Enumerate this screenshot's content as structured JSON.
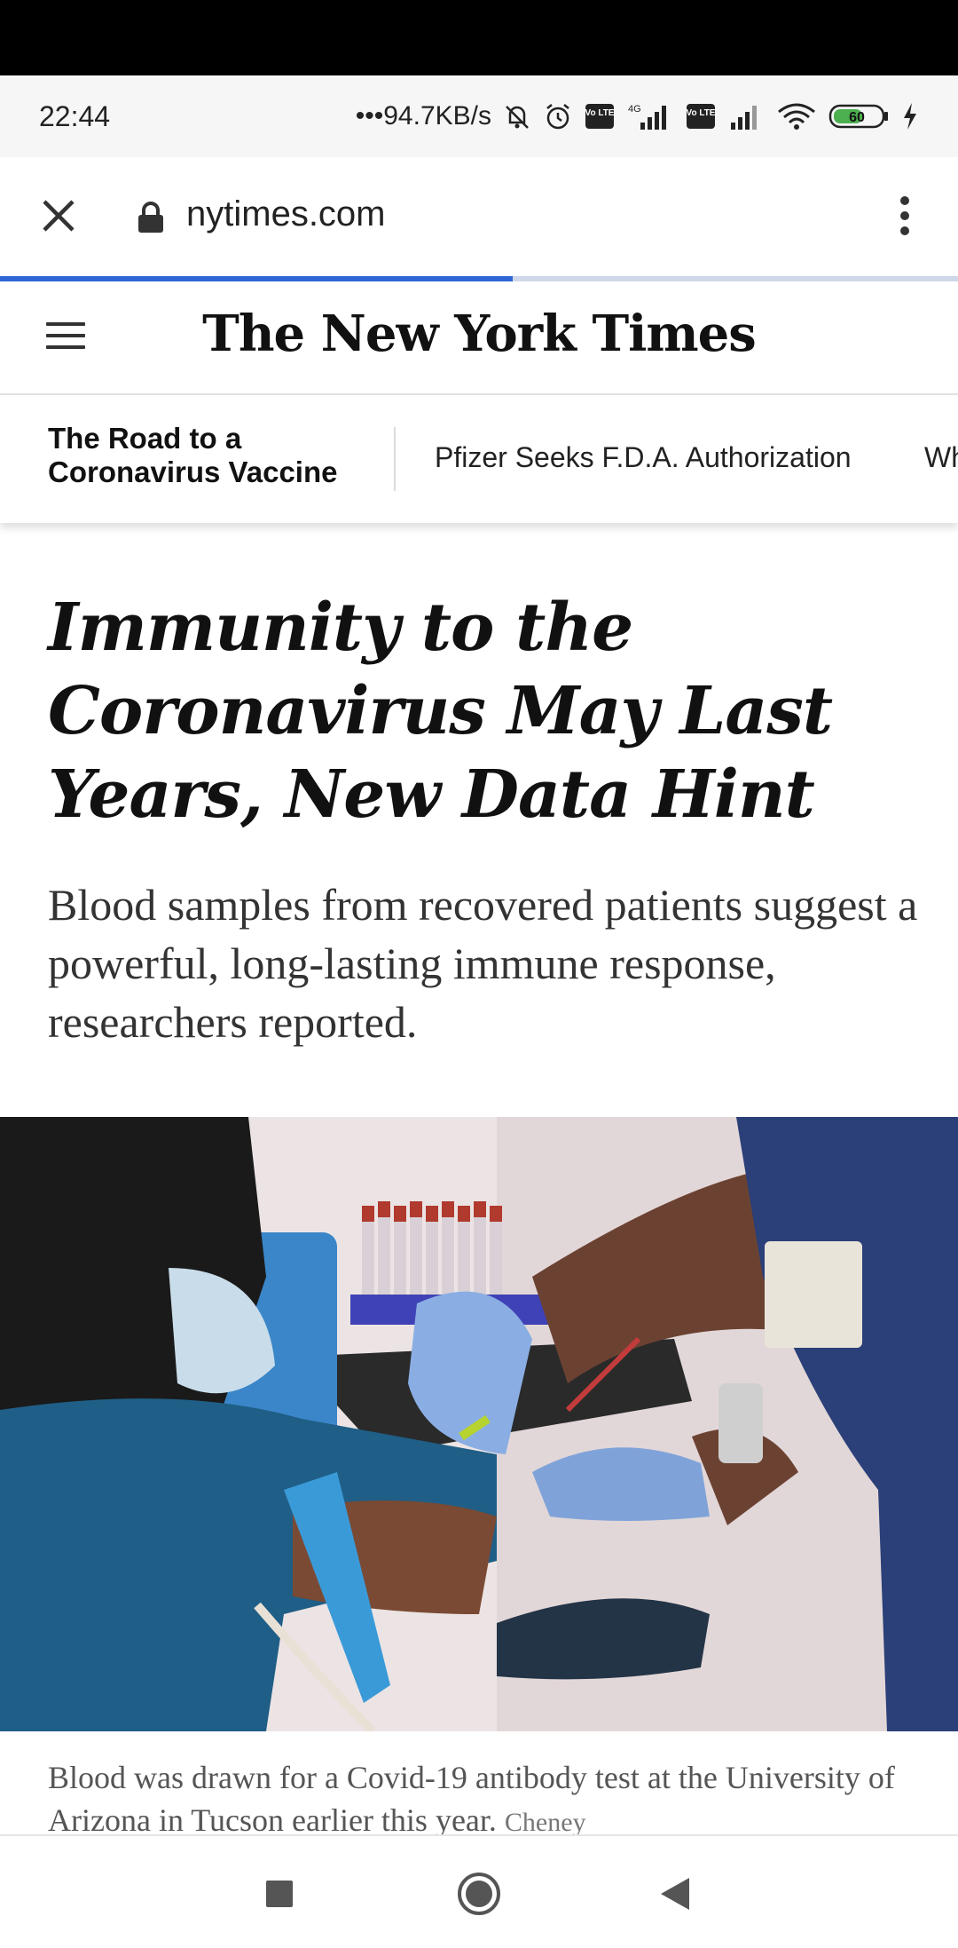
{
  "status_bar": {
    "time": "22:44",
    "net_speed": "•••94.7KB/s",
    "lte1": "Vo LTE",
    "network_tag": "4G",
    "lte2": "Vo LTE",
    "battery": "60"
  },
  "browser": {
    "url": "nytimes.com",
    "load_progress": 0.535
  },
  "site": {
    "masthead": "The New York Times"
  },
  "subnav": {
    "title_line1": "The Road to a",
    "title_line2": "Coronavirus Vaccine",
    "links": [
      "Pfizer Seeks F.D.A. Authorization",
      "Wh"
    ]
  },
  "article": {
    "headline": "Immunity to the Coronavirus May Last Years, New Data Hint",
    "summary": "Blood samples from recovered patients suggest a powerful, long-lasting immune response, researchers reported.",
    "caption": "Blood was drawn for a Covid-19 antibody test at the University of Arizona in Tucson earlier this year.",
    "credit": "Cheney"
  },
  "colors": {
    "progress": "#2f66d6",
    "progress_track": "#cfd8ea",
    "glove_blue": "#7fa3d9",
    "scrub_blue": "#1f5e86"
  },
  "icons": [
    "close-icon",
    "lock-icon",
    "more-vert-icon",
    "hamburger-icon",
    "stop-icon",
    "home-icon",
    "back-icon"
  ]
}
